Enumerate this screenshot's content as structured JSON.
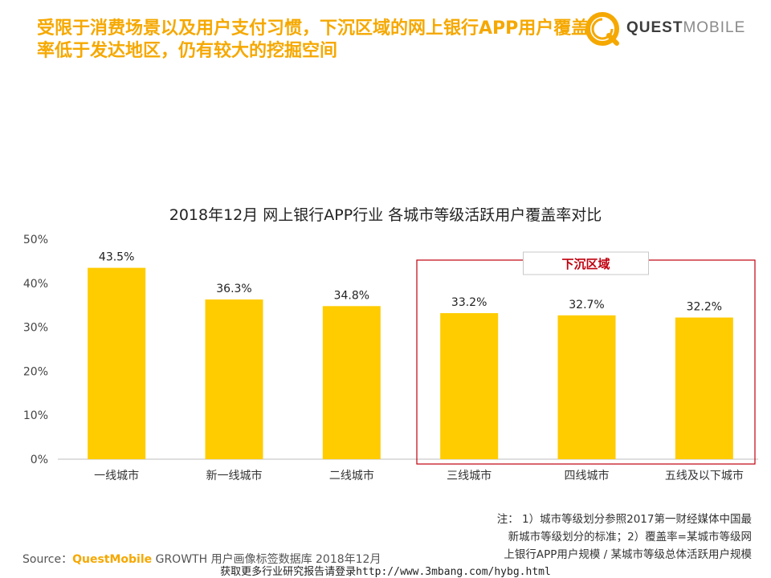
{
  "header": {
    "headline": "受限于消费场景以及用户支付习惯，下沉区域的网上银行APP用户覆盖率低于发达地区，仍有较大的挖掘空间"
  },
  "logo": {
    "quest": "QUEST",
    "mobile": "MOBILE"
  },
  "colors": {
    "bar": "#FFCC00",
    "accent": "#F5A800",
    "highlight_border": "#C0000E",
    "highlight_text": "#C0000E"
  },
  "chart_data": {
    "type": "bar",
    "title": "2018年12月 网上银行APP行业 各城市等级活跃用户覆盖率对比",
    "categories": [
      "一线城市",
      "新一线城市",
      "二线城市",
      "三线城市",
      "四线城市",
      "五线及以下城市"
    ],
    "values": [
      43.5,
      36.3,
      34.8,
      33.2,
      32.7,
      32.2
    ],
    "data_labels": [
      "43.5%",
      "36.3%",
      "34.8%",
      "33.2%",
      "32.7%",
      "32.2%"
    ],
    "ylim": [
      0,
      50
    ],
    "yticks": [
      "0%",
      "10%",
      "20%",
      "30%",
      "40%",
      "50%"
    ],
    "grid": false,
    "highlight": {
      "label": "下沉区域",
      "categories": [
        "三线城市",
        "四线城市",
        "五线及以下城市"
      ]
    }
  },
  "note": {
    "line1": "注：  1）城市等级划分参照2017第一财经媒体中国最",
    "line2": "新城市等级划分的标准；2）覆盖率=某城市等级网",
    "line3": "上银行APP用户规模 / 某城市等级总体活跃用户规模"
  },
  "source": {
    "prefix": "Source：",
    "brand": "QuestMobile",
    "text": " GROWTH 用户画像标签数据库 2018年12月"
  },
  "footer": {
    "text": "获取更多行业研究报告请登录http://www.3mbang.com/hybg.html"
  }
}
